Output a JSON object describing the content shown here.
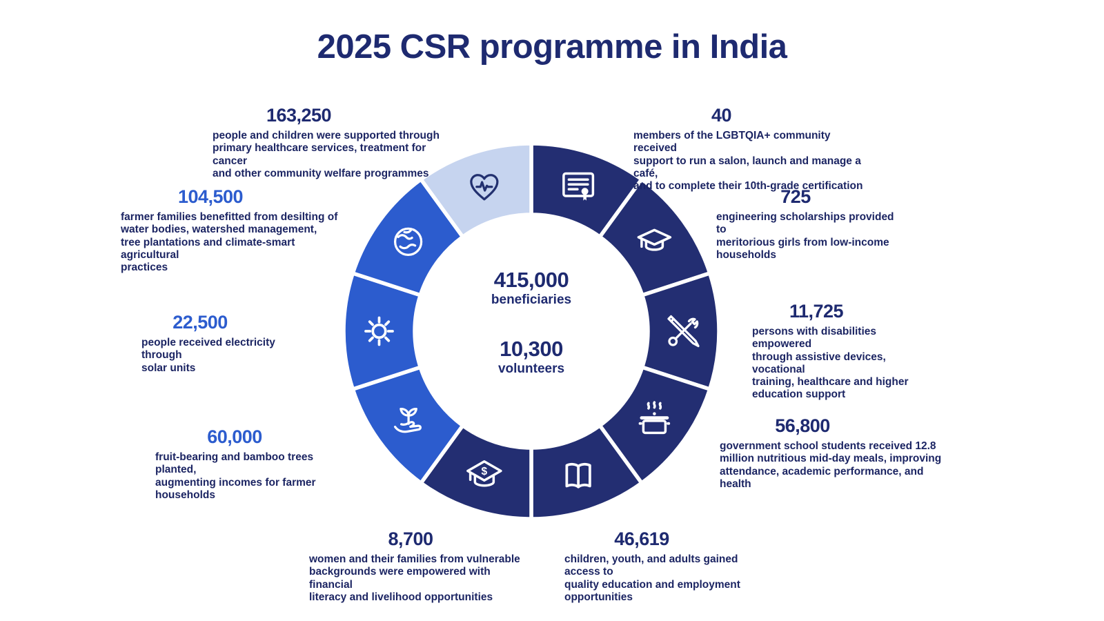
{
  "title": "2025 CSR programme in India",
  "center": {
    "beneficiaries_value": "415,000",
    "beneficiaries_label": "beneficiaries",
    "volunteers_value": "10,300",
    "volunteers_label": "volunteers"
  },
  "colors": {
    "navy": "#232e72",
    "royal": "#2c5cce",
    "light": "#c6d4ef",
    "number_navy": "#1e2a70",
    "number_royal": "#2c5cce",
    "text": "#1c2563"
  },
  "chart_data": {
    "type": "pie",
    "subtype": "donut",
    "title": "2025 CSR programme in India",
    "equal_segments": true,
    "segment_angle_deg": 36,
    "start_angle_deg": 0,
    "direction": "clockwise",
    "center_labels": [
      {
        "value": "415,000",
        "label": "beneficiaries"
      },
      {
        "value": "10,300",
        "label": "volunteers"
      }
    ],
    "segments": [
      {
        "id": "lgbtqia-support",
        "icon": "certificate-icon",
        "color": "navy",
        "value": 40,
        "display_value": "40",
        "desc": "members of the LGBTQIA+ community received\nsupport to run a salon, launch and manage a café,\nand to complete their 10th-grade certification"
      },
      {
        "id": "engineering-scholarships",
        "icon": "graduation-cap-icon",
        "color": "navy",
        "value": 725,
        "display_value": "725",
        "desc": "engineering scholarships provided to\nmeritorious girls from low-income\nhouseholds"
      },
      {
        "id": "disability-empowerment",
        "icon": "pencil-wrench-icon",
        "color": "navy",
        "value": 11725,
        "display_value": "11,725",
        "desc": "persons with disabilities empowered\nthrough assistive devices, vocational\ntraining, healthcare and higher\neducation support"
      },
      {
        "id": "midday-meals",
        "icon": "cooking-pot-icon",
        "color": "navy",
        "value": 56800,
        "display_value": "56,800",
        "desc": "government school students received 12.8\nmillion nutritious mid-day meals, improving\nattendance, academic performance, and health"
      },
      {
        "id": "education-access",
        "icon": "open-book-icon",
        "color": "navy",
        "value": 46619,
        "display_value": "46,619",
        "desc": "children, youth, and adults gained access to\nquality education and employment\nopportunities"
      },
      {
        "id": "women-empowerment",
        "icon": "graduation-cap-dollar-icon",
        "color": "navy",
        "value": 8700,
        "display_value": "8,700",
        "desc": "women and their families from vulnerable\nbackgrounds were empowered with financial\nliteracy and livelihood opportunities"
      },
      {
        "id": "trees-planted",
        "icon": "plant-hand-icon",
        "color": "royal",
        "value": 60000,
        "display_value": "60,000",
        "desc": "fruit-bearing and bamboo trees planted,\naugmenting incomes for farmer households"
      },
      {
        "id": "solar-electricity",
        "icon": "sun-icon",
        "color": "royal",
        "value": 22500,
        "display_value": "22,500",
        "desc": "people received electricity through\nsolar units"
      },
      {
        "id": "farmer-families",
        "icon": "earth-hands-icon",
        "color": "royal",
        "value": 104500,
        "display_value": "104,500",
        "desc": "farmer families benefitted from desilting of\nwater bodies, watershed management,\ntree plantations and climate-smart agricultural\npractices"
      },
      {
        "id": "healthcare-support",
        "icon": "heart-ecg-icon",
        "color": "light",
        "value": 163250,
        "display_value": "163,250",
        "desc": "people and children were supported through\nprimary healthcare services, treatment for cancer\nand other community welfare programmes"
      }
    ]
  }
}
